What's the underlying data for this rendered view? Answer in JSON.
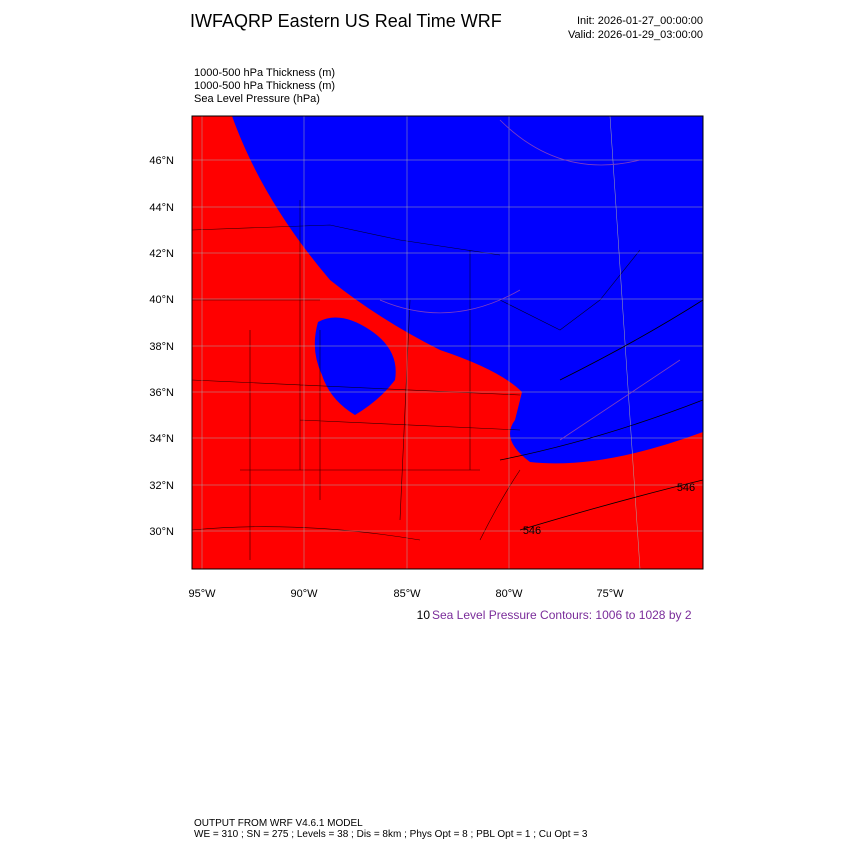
{
  "header": {
    "title": "IWFAQRP Eastern US Real Time WRF",
    "init": "Init: 2026-01-27_00:00:00",
    "valid": "Valid: 2026-01-29_03:00:00"
  },
  "fields": [
    "1000-500 hPa Thickness   (m)",
    "1000-500 hPa Thickness   (m)",
    "Sea Level Pressure   (hPa)"
  ],
  "lat_labels": [
    "46°N",
    "44°N",
    "42°N",
    "40°N",
    "38°N",
    "36°N",
    "34°N",
    "32°N",
    "30°N"
  ],
  "lon_labels": [
    "95°W",
    "90°W",
    "85°W",
    "80°W",
    "75°W"
  ],
  "contour_labels": [
    "546",
    "546"
  ],
  "legend": {
    "prefix": "10",
    "text": "Sea Level Pressure Contours: 1006 to 1028 by 2"
  },
  "footer": {
    "line1": "OUTPUT FROM WRF V4.6.1 MODEL",
    "line2": "WE = 310 ; SN = 275 ; Levels = 38 ; Dis = 8km ; Phys Opt = 8 ; PBL Opt = 1 ; Cu Opt = 3"
  }
}
